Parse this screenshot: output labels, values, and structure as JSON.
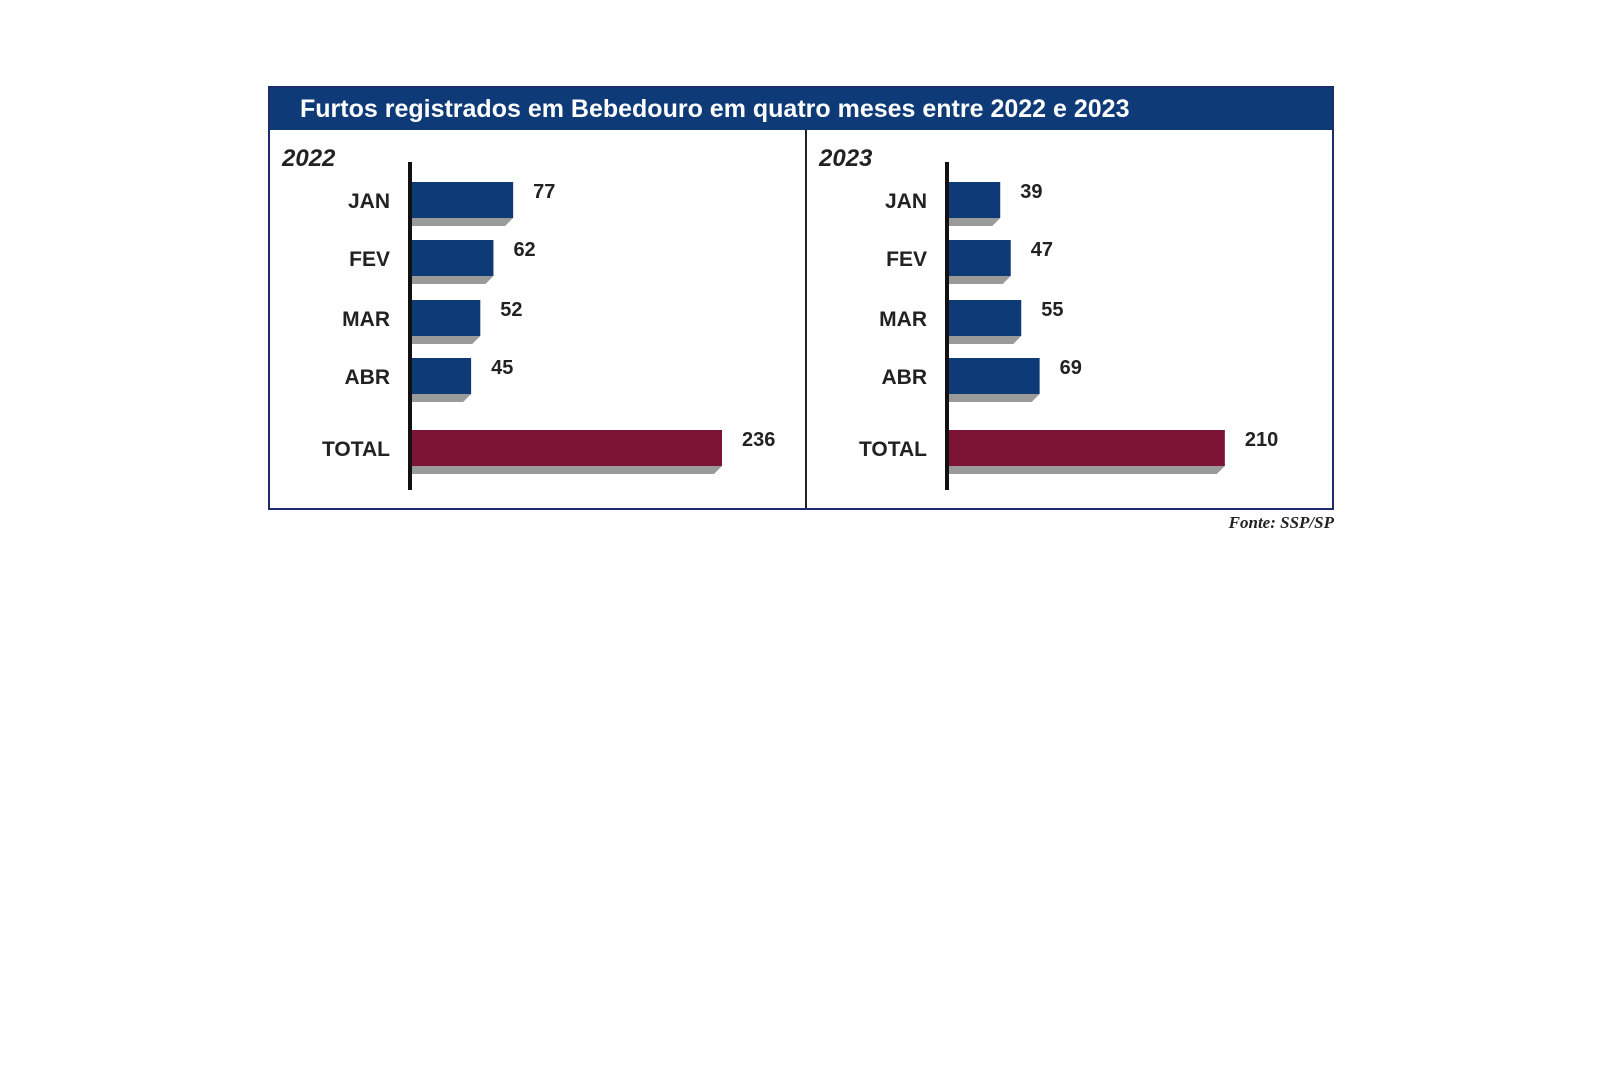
{
  "chart_data": {
    "type": "bar",
    "title": "Furtos registrados em Bebedouro em quatro meses entre 2022 e 2023",
    "orientation": "horizontal",
    "colors": {
      "month_bar": "#0e3a78",
      "total_bar": "#7d1436",
      "bar_shadow": "#9a9a9a",
      "title_bg": "#0e3a78"
    },
    "panels": [
      {
        "year": "2022",
        "categories": [
          "JAN",
          "FEV",
          "MAR",
          "ABR",
          "TOTAL"
        ],
        "values": [
          77,
          62,
          52,
          45,
          236
        ]
      },
      {
        "year": "2023",
        "categories": [
          "JAN",
          "FEV",
          "MAR",
          "ABR",
          "TOTAL"
        ],
        "values": [
          39,
          47,
          55,
          69,
          210
        ]
      }
    ]
  },
  "source": "Fonte: SSP/SP"
}
